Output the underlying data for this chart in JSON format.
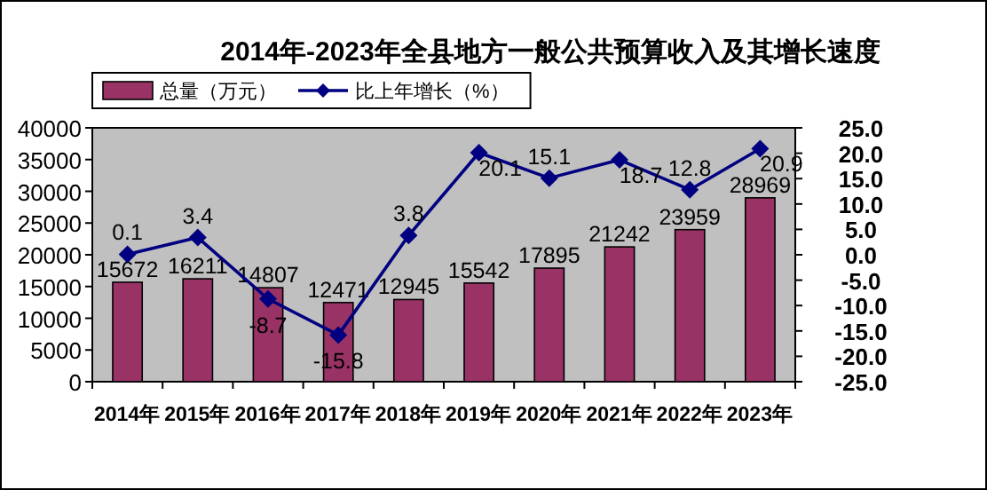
{
  "chart_data": {
    "type": "bar",
    "title": "2014年-2023年全县地方一般公共预算收入及其增长速度",
    "categories": [
      "2014年",
      "2015年",
      "2016年",
      "2017年",
      "2018年",
      "2019年",
      "2020年",
      "2021年",
      "2022年",
      "2023年"
    ],
    "series": [
      {
        "name": "总量（万元）",
        "color": "#993366",
        "values": [
          15672,
          16211,
          14807,
          12471,
          12945,
          15542,
          17895,
          21242,
          23959,
          28969
        ]
      },
      {
        "name": "比上年增长（%）",
        "type": "line",
        "axis": "y2",
        "marker": "diamond",
        "color": "#000080",
        "values": [
          0.1,
          3.4,
          -8.7,
          -15.8,
          3.8,
          20.1,
          15.1,
          18.7,
          12.8,
          20.9
        ]
      }
    ],
    "ylim": [
      0,
      40000
    ],
    "yticks": [
      0,
      5000,
      10000,
      15000,
      20000,
      25000,
      30000,
      35000,
      40000
    ],
    "y2lim": [
      -25,
      25
    ],
    "y2ticks": [
      {
        "value": -25,
        "label": "-25.0"
      },
      {
        "value": -20,
        "label": "-20.0"
      },
      {
        "value": -15,
        "label": "-15.0"
      },
      {
        "value": -10,
        "label": "-10.0"
      },
      {
        "value": -5,
        "label": "-5.0"
      },
      {
        "value": 0,
        "label": "0.0"
      },
      {
        "value": 5,
        "label": "5.0"
      },
      {
        "value": 10,
        "label": "10.0"
      },
      {
        "value": 15,
        "label": "15.0"
      },
      {
        "value": 20,
        "label": "20.0"
      },
      {
        "value": 25,
        "label": "25.0"
      }
    ],
    "legend": "top left",
    "data_labels": true
  }
}
